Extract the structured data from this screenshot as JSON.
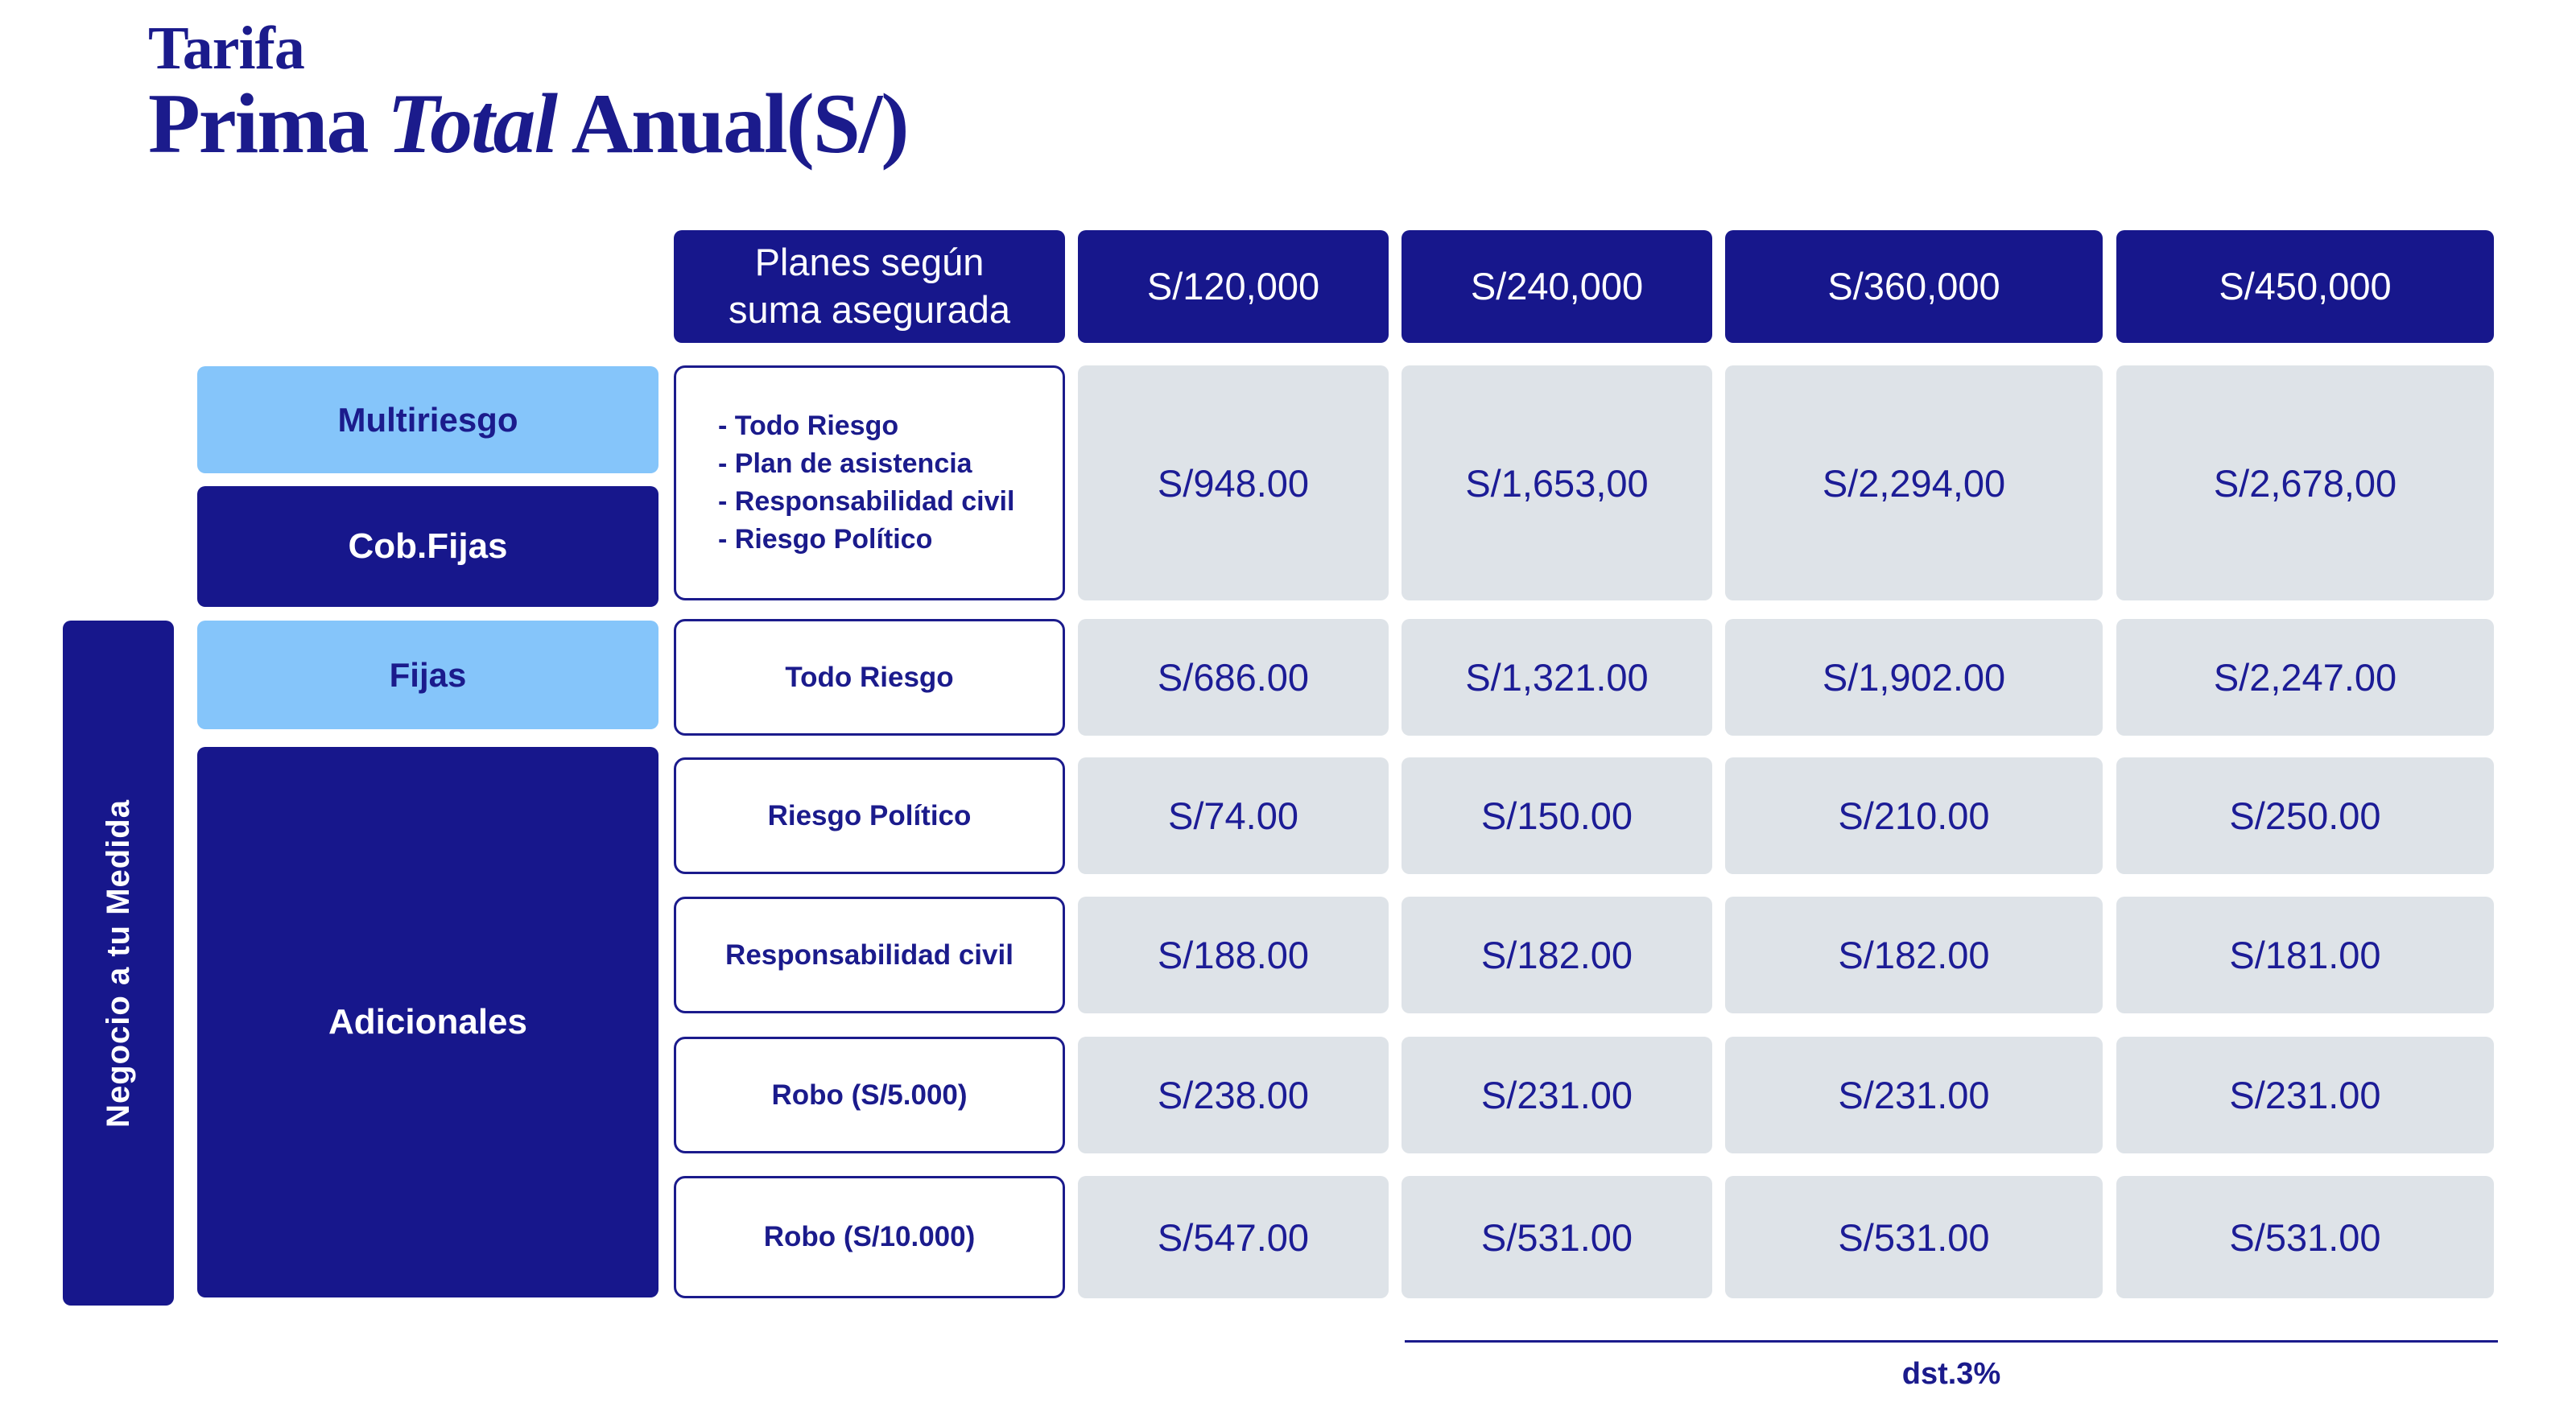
{
  "title": {
    "line1": "Tarifa",
    "line2_prefix": "Prima ",
    "line2_italic": "Total",
    "line2_suffix": " Anual(S/)"
  },
  "header": {
    "plans_line1": "Planes según",
    "plans_line2": "suma asegurada",
    "columns": [
      "S/120,000",
      "S/240,000",
      "S/360,000",
      "S/450,000"
    ]
  },
  "sidebar": {
    "vertical_label": "Negocio a tu Medida"
  },
  "groups": {
    "multiriesgo": "Multiriesgo",
    "cob_fijas": "Cob.Fijas",
    "fijas": "Fijas",
    "adicionales": "Adicionales"
  },
  "rows": [
    {
      "bullets": [
        "- Todo Riesgo",
        "- Plan de asistencia",
        "- Responsabilidad civil",
        "- Riesgo Político"
      ],
      "values": [
        "S/948.00",
        "S/1,653,00",
        "S/2,294,00",
        "S/2,678,00"
      ]
    },
    {
      "label": "Todo Riesgo",
      "values": [
        "S/686.00",
        "S/1,321.00",
        "S/1,902.00",
        "S/2,247.00"
      ]
    },
    {
      "label": "Riesgo Político",
      "values": [
        "S/74.00",
        "S/150.00",
        "S/210.00",
        "S/250.00"
      ]
    },
    {
      "label": "Responsabilidad civil",
      "values": [
        "S/188.00",
        "S/182.00",
        "S/182.00",
        "S/181.00"
      ]
    },
    {
      "label": "Robo (S/5.000)",
      "values": [
        "S/238.00",
        "S/231.00",
        "S/231.00",
        "S/231.00"
      ]
    },
    {
      "label": "Robo (S/10.000)",
      "values": [
        "S/547.00",
        "S/531.00",
        "S/531.00",
        "S/531.00"
      ]
    }
  ],
  "footer": {
    "discount_note": "dst.3%"
  },
  "colors": {
    "navy": "#17178C",
    "title_navy": "#1B1B8C",
    "light_blue": "#85C5FA",
    "cell_gray": "#DEE3E8",
    "value_text": "#1C1C96",
    "white": "#FFFFFF"
  }
}
